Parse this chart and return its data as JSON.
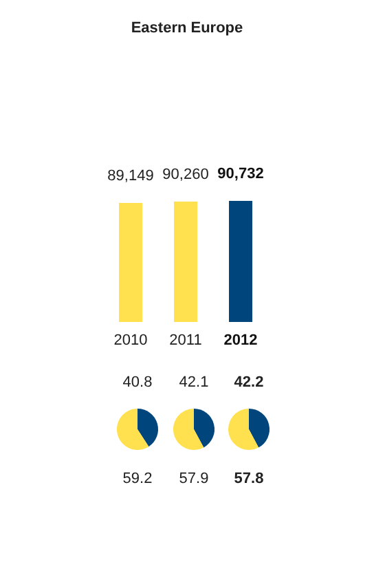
{
  "chart_data": [
    {
      "type": "bar",
      "title": "Eastern Europe",
      "categories": [
        "2010",
        "2011",
        "2012"
      ],
      "values": [
        89149,
        90260,
        90732
      ],
      "colors": [
        "#ffe04f",
        "#ffe04f",
        "#00457c"
      ],
      "value_labels": [
        "89,149",
        "90,260",
        "90,732"
      ],
      "tick_labels": "x"
    },
    {
      "type": "pie",
      "categories": [
        null,
        null
      ],
      "values": [
        40.8,
        59.2
      ],
      "colors": [
        "#00457c",
        "#ffe04f"
      ],
      "value_labels": [
        "40.8",
        "59.2"
      ]
    },
    {
      "type": "pie",
      "categories": [
        null,
        null
      ],
      "values": [
        42.1,
        57.9
      ],
      "colors": [
        "#00457c",
        "#ffe04f"
      ],
      "value_labels": [
        "42.1",
        "57.9"
      ]
    },
    {
      "type": "pie",
      "categories": [
        null,
        null
      ],
      "values": [
        42.2,
        57.8
      ],
      "colors": [
        "#00457c",
        "#ffe04f"
      ],
      "value_labels": [
        "42.2",
        "57.8"
      ]
    }
  ]
}
